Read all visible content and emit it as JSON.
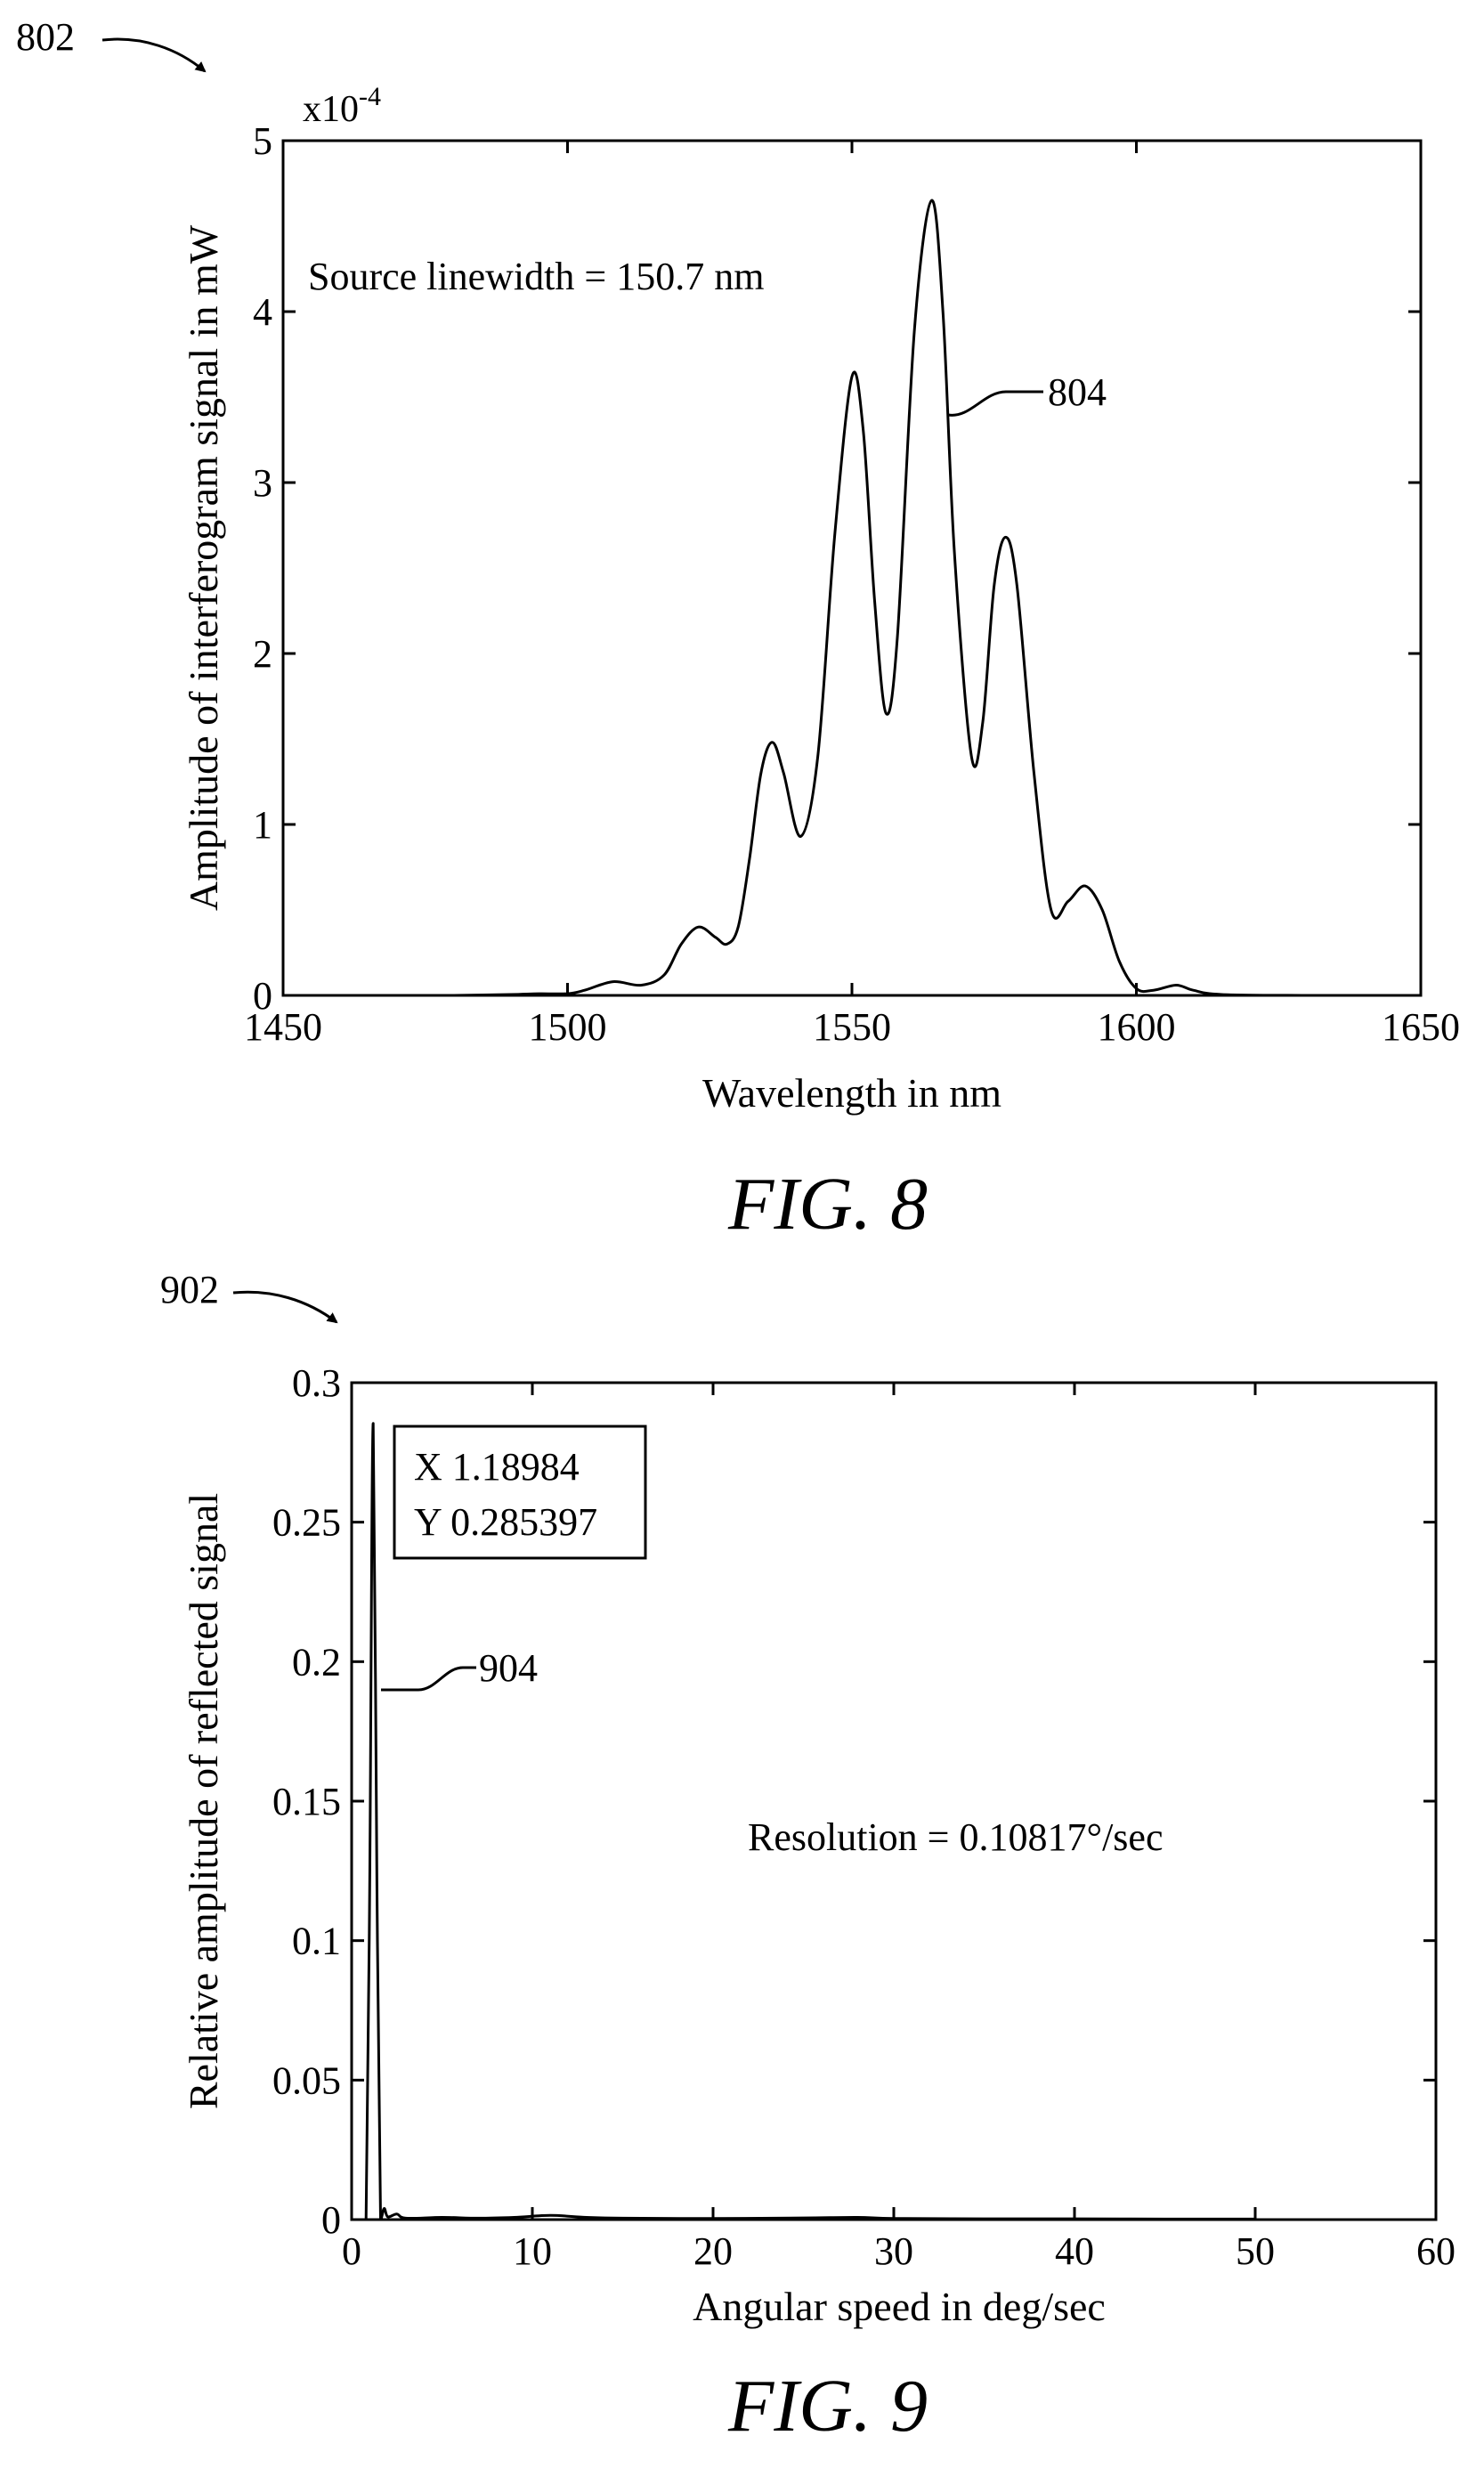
{
  "chart_data": [
    {
      "type": "line",
      "figure_label": "FIG. 8",
      "figure_ref": "802",
      "curve_ref": "804",
      "xlabel": "Wavelength in nm",
      "ylabel": "Amplitude of interferogram signal in mW",
      "y_multiplier_label": "x10",
      "y_multiplier_exp": "-4",
      "annotation": "Source linewidth = 150.7 nm",
      "xlim": [
        1450,
        1650
      ],
      "ylim": [
        0,
        5
      ],
      "x_ticks": [
        "1450",
        "1500",
        "1550",
        "1600",
        "1650"
      ],
      "y_ticks": [
        "0",
        "1",
        "2",
        "3",
        "4",
        "5"
      ],
      "grid": false,
      "series": [
        {
          "values": [
            [
              1480,
              0.0
            ],
            [
              1490,
              0.005
            ],
            [
              1495,
              0.01
            ],
            [
              1500,
              0.01
            ],
            [
              1503,
              0.03
            ],
            [
              1508,
              0.08
            ],
            [
              1513,
              0.06
            ],
            [
              1517,
              0.12
            ],
            [
              1520,
              0.3
            ],
            [
              1523,
              0.4
            ],
            [
              1526,
              0.34
            ],
            [
              1528,
              0.3
            ],
            [
              1530,
              0.4
            ],
            [
              1532,
              0.8
            ],
            [
              1534,
              1.3
            ],
            [
              1536,
              1.48
            ],
            [
              1538,
              1.3
            ],
            [
              1541,
              0.93
            ],
            [
              1544,
              1.4
            ],
            [
              1547,
              2.7
            ],
            [
              1550,
              3.62
            ],
            [
              1552,
              3.3
            ],
            [
              1554,
              2.3
            ],
            [
              1556,
              1.65
            ],
            [
              1558,
              2.1
            ],
            [
              1561,
              3.9
            ],
            [
              1564,
              4.65
            ],
            [
              1566,
              4.0
            ],
            [
              1568,
              2.6
            ],
            [
              1571,
              1.4
            ],
            [
              1573,
              1.6
            ],
            [
              1575,
              2.4
            ],
            [
              1577,
              2.68
            ],
            [
              1579,
              2.4
            ],
            [
              1582,
              1.3
            ],
            [
              1585,
              0.5
            ],
            [
              1588,
              0.55
            ],
            [
              1591,
              0.64
            ],
            [
              1594,
              0.5
            ],
            [
              1597,
              0.2
            ],
            [
              1600,
              0.04
            ],
            [
              1603,
              0.03
            ],
            [
              1607,
              0.06
            ],
            [
              1610,
              0.03
            ],
            [
              1615,
              0.005
            ],
            [
              1630,
              0.0
            ]
          ]
        }
      ]
    },
    {
      "type": "line",
      "figure_label": "FIG. 9",
      "figure_ref": "902",
      "curve_ref": "904",
      "xlabel": "Angular speed in deg/sec",
      "ylabel": "Relative amplitude of reflected signal",
      "datatip_x": "X 1.18984",
      "datatip_y": "Y 0.285397",
      "annotation": "Resolution = 0.10817°/sec",
      "xlim": [
        0,
        60
      ],
      "ylim": [
        0,
        0.3
      ],
      "x_ticks": [
        "0",
        "10",
        "20",
        "30",
        "40",
        "50",
        "60"
      ],
      "y_ticks": [
        "0",
        "0.05",
        "0.1",
        "0.15",
        "0.2",
        "0.25",
        "0.3"
      ],
      "grid": false,
      "series": [
        {
          "values": [
            [
              0.5,
              0.0
            ],
            [
              0.8,
              0.0
            ],
            [
              1.0,
              0.12
            ],
            [
              1.19,
              0.2854
            ],
            [
              1.4,
              0.12
            ],
            [
              1.6,
              0.0
            ],
            [
              1.8,
              0.004
            ],
            [
              2.0,
              0.001
            ],
            [
              2.5,
              0.002
            ],
            [
              3,
              0.0005
            ],
            [
              5,
              0.0008
            ],
            [
              7,
              0.0005
            ],
            [
              9,
              0.0008
            ],
            [
              11,
              0.0015
            ],
            [
              13,
              0.0008
            ],
            [
              15,
              0.0005
            ],
            [
              20,
              0.0004
            ],
            [
              25,
              0.0006
            ],
            [
              28,
              0.0008
            ],
            [
              30,
              0.0004
            ],
            [
              35,
              0.0003
            ],
            [
              40,
              0.0003
            ],
            [
              45,
              0.0002
            ],
            [
              50,
              0.0002
            ]
          ]
        }
      ]
    }
  ]
}
